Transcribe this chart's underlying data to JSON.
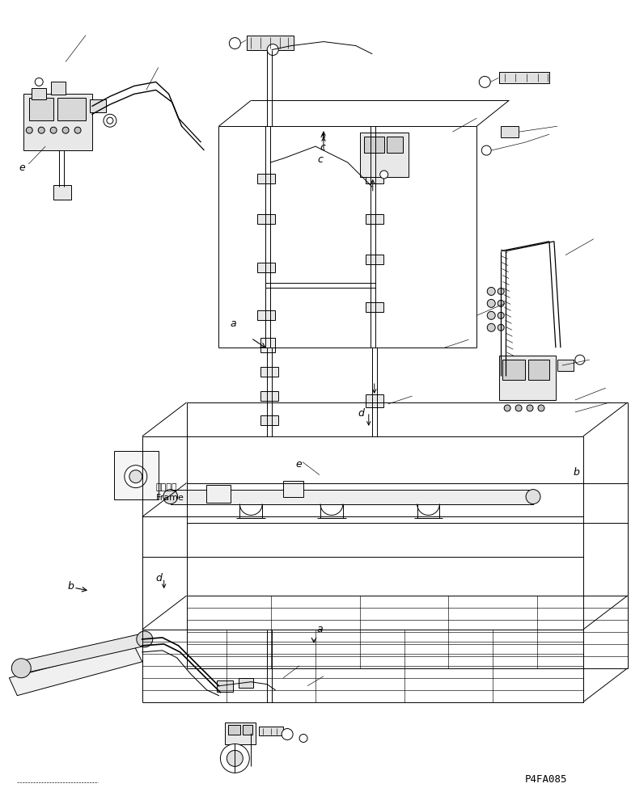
{
  "figure_width": 7.8,
  "figure_height": 9.8,
  "dpi": 100,
  "bg_color": "#ffffff",
  "line_color": "#000000",
  "part_number": "P4FA085",
  "frame_label_jp": "フレーム",
  "frame_label_en": "Frame",
  "lw": 0.7,
  "tlw": 0.45
}
